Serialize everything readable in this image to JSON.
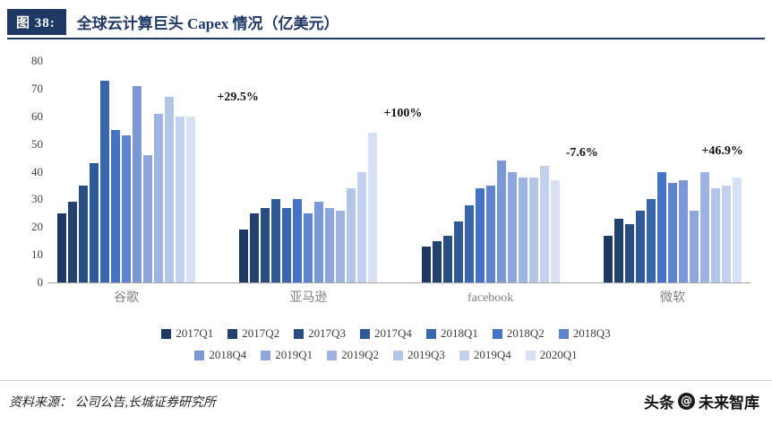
{
  "header": {
    "badge": "图 38:",
    "title": "全球云计算巨头 Capex 情况（亿美元）"
  },
  "chart_data": {
    "type": "bar",
    "title": "全球云计算巨头 Capex 情况（亿美元）",
    "categories": [
      "谷歌",
      "亚马逊",
      "facebook",
      "微软"
    ],
    "quarters": [
      "2017Q1",
      "2017Q2",
      "2017Q3",
      "2017Q4",
      "2018Q1",
      "2018Q2",
      "2018Q3",
      "2018Q4",
      "2019Q1",
      "2019Q2",
      "2019Q3",
      "2019Q4",
      "2020Q1"
    ],
    "series": [
      {
        "name": "谷歌",
        "values": [
          25,
          29,
          35,
          43,
          73,
          55,
          53,
          71,
          46,
          61,
          67,
          60,
          60
        ]
      },
      {
        "name": "亚马逊",
        "values": [
          19,
          25,
          27,
          30,
          27,
          30,
          25,
          29,
          27,
          26,
          34,
          40,
          54
        ]
      },
      {
        "name": "facebook",
        "values": [
          13,
          15,
          17,
          22,
          28,
          34,
          35,
          44,
          40,
          38,
          38,
          42,
          37
        ]
      },
      {
        "name": "微软",
        "values": [
          17,
          23,
          21,
          26,
          30,
          40,
          36,
          37,
          26,
          40,
          34,
          35,
          38
        ]
      }
    ],
    "colors": [
      "#1F3864",
      "#24426E",
      "#2A4D7F",
      "#305A96",
      "#3A66AC",
      "#4472C4",
      "#5E84CD",
      "#7B97D6",
      "#8EA6DC",
      "#9FB3E2",
      "#B4C6E7",
      "#C3D1EE",
      "#D9E2F5"
    ],
    "ylim": [
      0,
      80
    ],
    "yticks": [
      0,
      10,
      20,
      30,
      40,
      50,
      60,
      70,
      80
    ],
    "grid": false,
    "legend_position": "bottom",
    "annotations": [
      {
        "text": "+29.5%",
        "category": "谷歌"
      },
      {
        "text": "+100%",
        "category": "亚马逊"
      },
      {
        "text": "-7.6%",
        "category": "facebook"
      },
      {
        "text": "+46.9%",
        "category": "微软"
      }
    ]
  },
  "footer": {
    "source": "资料来源：  公司公告,长城证券研究所",
    "brand": "头条",
    "at": "@",
    "brand_handle": "未来智库"
  }
}
